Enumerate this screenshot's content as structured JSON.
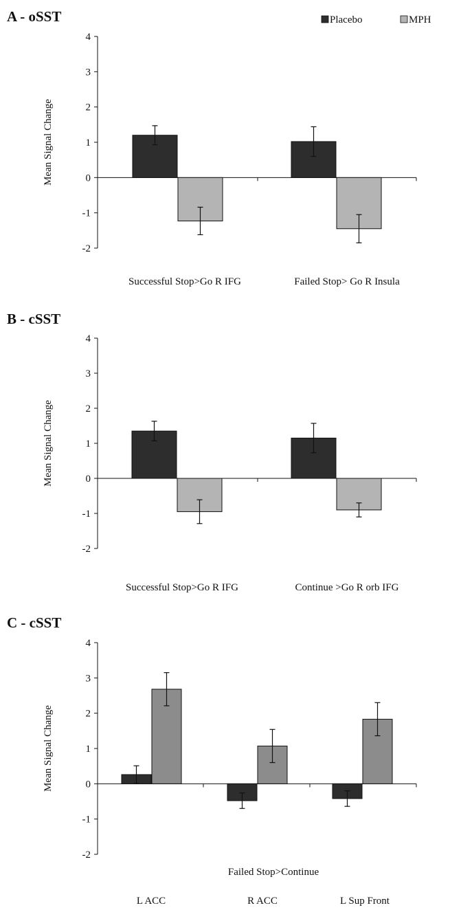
{
  "legend": [
    {
      "label": "Placebo",
      "color": "#2d2d2d"
    },
    {
      "label": "MPH",
      "color": "#b4b4b4"
    }
  ],
  "chart_data": [
    {
      "panel": "A - oSST",
      "type": "bar",
      "ylabel": "Mean Signal Change",
      "ylim": [
        -2,
        4
      ],
      "yticks": [
        4,
        3,
        2,
        1,
        0,
        -1,
        -2
      ],
      "categories": [
        "Successful Stop>Go R IFG",
        "Failed Stop> Go R Insula"
      ],
      "xlabel": "",
      "series": [
        {
          "name": "Placebo",
          "color": "#2d2d2d",
          "values": [
            1.2,
            1.02
          ],
          "errors": [
            0.27,
            0.42
          ]
        },
        {
          "name": "MPH",
          "color": "#b4b4b4",
          "values": [
            -1.23,
            -1.45
          ],
          "errors": [
            0.39,
            0.4
          ]
        }
      ]
    },
    {
      "panel": "B - cSST",
      "type": "bar",
      "ylabel": "Mean Signal Change",
      "ylim": [
        -2,
        4
      ],
      "yticks": [
        4,
        3,
        2,
        1,
        0,
        -1,
        -2
      ],
      "categories": [
        "Successful Stop>Go R IFG",
        "Continue >Go R orb IFG"
      ],
      "xlabel": "",
      "series": [
        {
          "name": "Placebo",
          "color": "#2d2d2d",
          "values": [
            1.35,
            1.15
          ],
          "errors": [
            0.28,
            0.42
          ]
        },
        {
          "name": "MPH",
          "color": "#b4b4b4",
          "values": [
            -0.95,
            -0.9
          ],
          "errors": [
            0.34,
            0.2
          ]
        }
      ]
    },
    {
      "panel": "C - cSST",
      "type": "bar",
      "ylabel": "Mean Signal Change",
      "ylim": [
        -2,
        4
      ],
      "yticks": [
        4,
        3,
        2,
        1,
        0,
        -1,
        -2
      ],
      "categories": [
        "L ACC",
        "R ACC",
        "L Sup Front"
      ],
      "xlabel": "Failed Stop>Continue",
      "series": [
        {
          "name": "Placebo",
          "color": "#2d2d2d",
          "values": [
            0.26,
            -0.48,
            -0.42
          ],
          "errors": [
            0.25,
            0.22,
            0.22
          ]
        },
        {
          "name": "MPH",
          "color": "#8c8c8c",
          "values": [
            2.68,
            1.07,
            1.83
          ],
          "errors": [
            0.47,
            0.47,
            0.47
          ]
        }
      ]
    }
  ]
}
